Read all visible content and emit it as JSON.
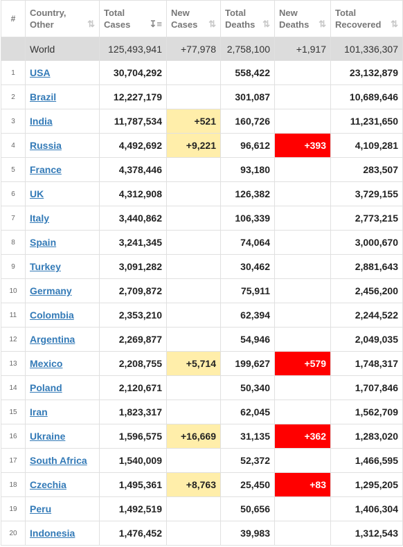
{
  "headers": {
    "idx": "#",
    "country": [
      "Country,",
      "Other"
    ],
    "total_cases": [
      "Total",
      "Cases"
    ],
    "new_cases": [
      "New",
      "Cases"
    ],
    "total_deaths": [
      "Total",
      "Deaths"
    ],
    "new_deaths": [
      "New",
      "Deaths"
    ],
    "total_recovered": [
      "Total",
      "Recovered"
    ]
  },
  "icons": {
    "sort": "sort-icon",
    "sort_active": "sort-desc-icon"
  },
  "colors": {
    "new_cases_highlight": "#ffeeaa",
    "new_deaths_highlight": "#ff0000",
    "link": "#337ab7",
    "world_row": "#dcdcdc"
  },
  "world": {
    "country": "World",
    "total_cases": "125,493,941",
    "new_cases": "+77,978",
    "total_deaths": "2,758,100",
    "new_deaths": "+1,917",
    "total_recovered": "101,336,307"
  },
  "rows": [
    {
      "idx": "1",
      "country": "USA",
      "total_cases": "30,704,292",
      "new_cases": "",
      "total_deaths": "558,422",
      "new_deaths": "",
      "total_recovered": "23,132,879"
    },
    {
      "idx": "2",
      "country": "Brazil",
      "total_cases": "12,227,179",
      "new_cases": "",
      "total_deaths": "301,087",
      "new_deaths": "",
      "total_recovered": "10,689,646"
    },
    {
      "idx": "3",
      "country": "India",
      "total_cases": "11,787,534",
      "new_cases": "+521",
      "total_deaths": "160,726",
      "new_deaths": "",
      "total_recovered": "11,231,650"
    },
    {
      "idx": "4",
      "country": "Russia",
      "total_cases": "4,492,692",
      "new_cases": "+9,221",
      "total_deaths": "96,612",
      "new_deaths": "+393",
      "total_recovered": "4,109,281"
    },
    {
      "idx": "5",
      "country": "France",
      "total_cases": "4,378,446",
      "new_cases": "",
      "total_deaths": "93,180",
      "new_deaths": "",
      "total_recovered": "283,507"
    },
    {
      "idx": "6",
      "country": "UK",
      "total_cases": "4,312,908",
      "new_cases": "",
      "total_deaths": "126,382",
      "new_deaths": "",
      "total_recovered": "3,729,155"
    },
    {
      "idx": "7",
      "country": "Italy",
      "total_cases": "3,440,862",
      "new_cases": "",
      "total_deaths": "106,339",
      "new_deaths": "",
      "total_recovered": "2,773,215"
    },
    {
      "idx": "8",
      "country": "Spain",
      "total_cases": "3,241,345",
      "new_cases": "",
      "total_deaths": "74,064",
      "new_deaths": "",
      "total_recovered": "3,000,670"
    },
    {
      "idx": "9",
      "country": "Turkey",
      "total_cases": "3,091,282",
      "new_cases": "",
      "total_deaths": "30,462",
      "new_deaths": "",
      "total_recovered": "2,881,643"
    },
    {
      "idx": "10",
      "country": "Germany",
      "total_cases": "2,709,872",
      "new_cases": "",
      "total_deaths": "75,911",
      "new_deaths": "",
      "total_recovered": "2,456,200"
    },
    {
      "idx": "11",
      "country": "Colombia",
      "total_cases": "2,353,210",
      "new_cases": "",
      "total_deaths": "62,394",
      "new_deaths": "",
      "total_recovered": "2,244,522"
    },
    {
      "idx": "12",
      "country": "Argentina",
      "total_cases": "2,269,877",
      "new_cases": "",
      "total_deaths": "54,946",
      "new_deaths": "",
      "total_recovered": "2,049,035"
    },
    {
      "idx": "13",
      "country": "Mexico",
      "total_cases": "2,208,755",
      "new_cases": "+5,714",
      "total_deaths": "199,627",
      "new_deaths": "+579",
      "total_recovered": "1,748,317"
    },
    {
      "idx": "14",
      "country": "Poland",
      "total_cases": "2,120,671",
      "new_cases": "",
      "total_deaths": "50,340",
      "new_deaths": "",
      "total_recovered": "1,707,846"
    },
    {
      "idx": "15",
      "country": "Iran",
      "total_cases": "1,823,317",
      "new_cases": "",
      "total_deaths": "62,045",
      "new_deaths": "",
      "total_recovered": "1,562,709"
    },
    {
      "idx": "16",
      "country": "Ukraine",
      "total_cases": "1,596,575",
      "new_cases": "+16,669",
      "total_deaths": "31,135",
      "new_deaths": "+362",
      "total_recovered": "1,283,020"
    },
    {
      "idx": "17",
      "country": "South Africa",
      "total_cases": "1,540,009",
      "new_cases": "",
      "total_deaths": "52,372",
      "new_deaths": "",
      "total_recovered": "1,466,595"
    },
    {
      "idx": "18",
      "country": "Czechia",
      "total_cases": "1,495,361",
      "new_cases": "+8,763",
      "total_deaths": "25,450",
      "new_deaths": "+83",
      "total_recovered": "1,295,205"
    },
    {
      "idx": "19",
      "country": "Peru",
      "total_cases": "1,492,519",
      "new_cases": "",
      "total_deaths": "50,656",
      "new_deaths": "",
      "total_recovered": "1,406,304"
    },
    {
      "idx": "20",
      "country": "Indonesia",
      "total_cases": "1,476,452",
      "new_cases": "",
      "total_deaths": "39,983",
      "new_deaths": "",
      "total_recovered": "1,312,543"
    }
  ]
}
